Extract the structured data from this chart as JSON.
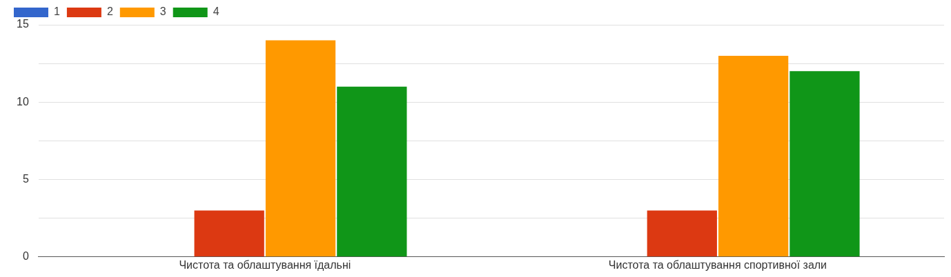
{
  "chart_data": {
    "type": "bar",
    "categories": [
      "Чистота та облаштування їдальні",
      "Чистота та облаштування спортивної зали"
    ],
    "series": [
      {
        "name": "1",
        "color": "#3366cc",
        "values": [
          0,
          0
        ]
      },
      {
        "name": "2",
        "color": "#dc3912",
        "values": [
          3,
          3
        ]
      },
      {
        "name": "3",
        "color": "#ff9900",
        "values": [
          14,
          13
        ]
      },
      {
        "name": "4",
        "color": "#109618",
        "values": [
          11,
          12
        ]
      }
    ],
    "ylim": [
      0,
      15
    ],
    "yticks": [
      0,
      {
        "value": 2.5,
        "label": null
      },
      5,
      {
        "value": 7.5,
        "label": null
      },
      10,
      {
        "value": 12.5,
        "label": null
      },
      15
    ],
    "grid": "y",
    "legend": "top left"
  }
}
